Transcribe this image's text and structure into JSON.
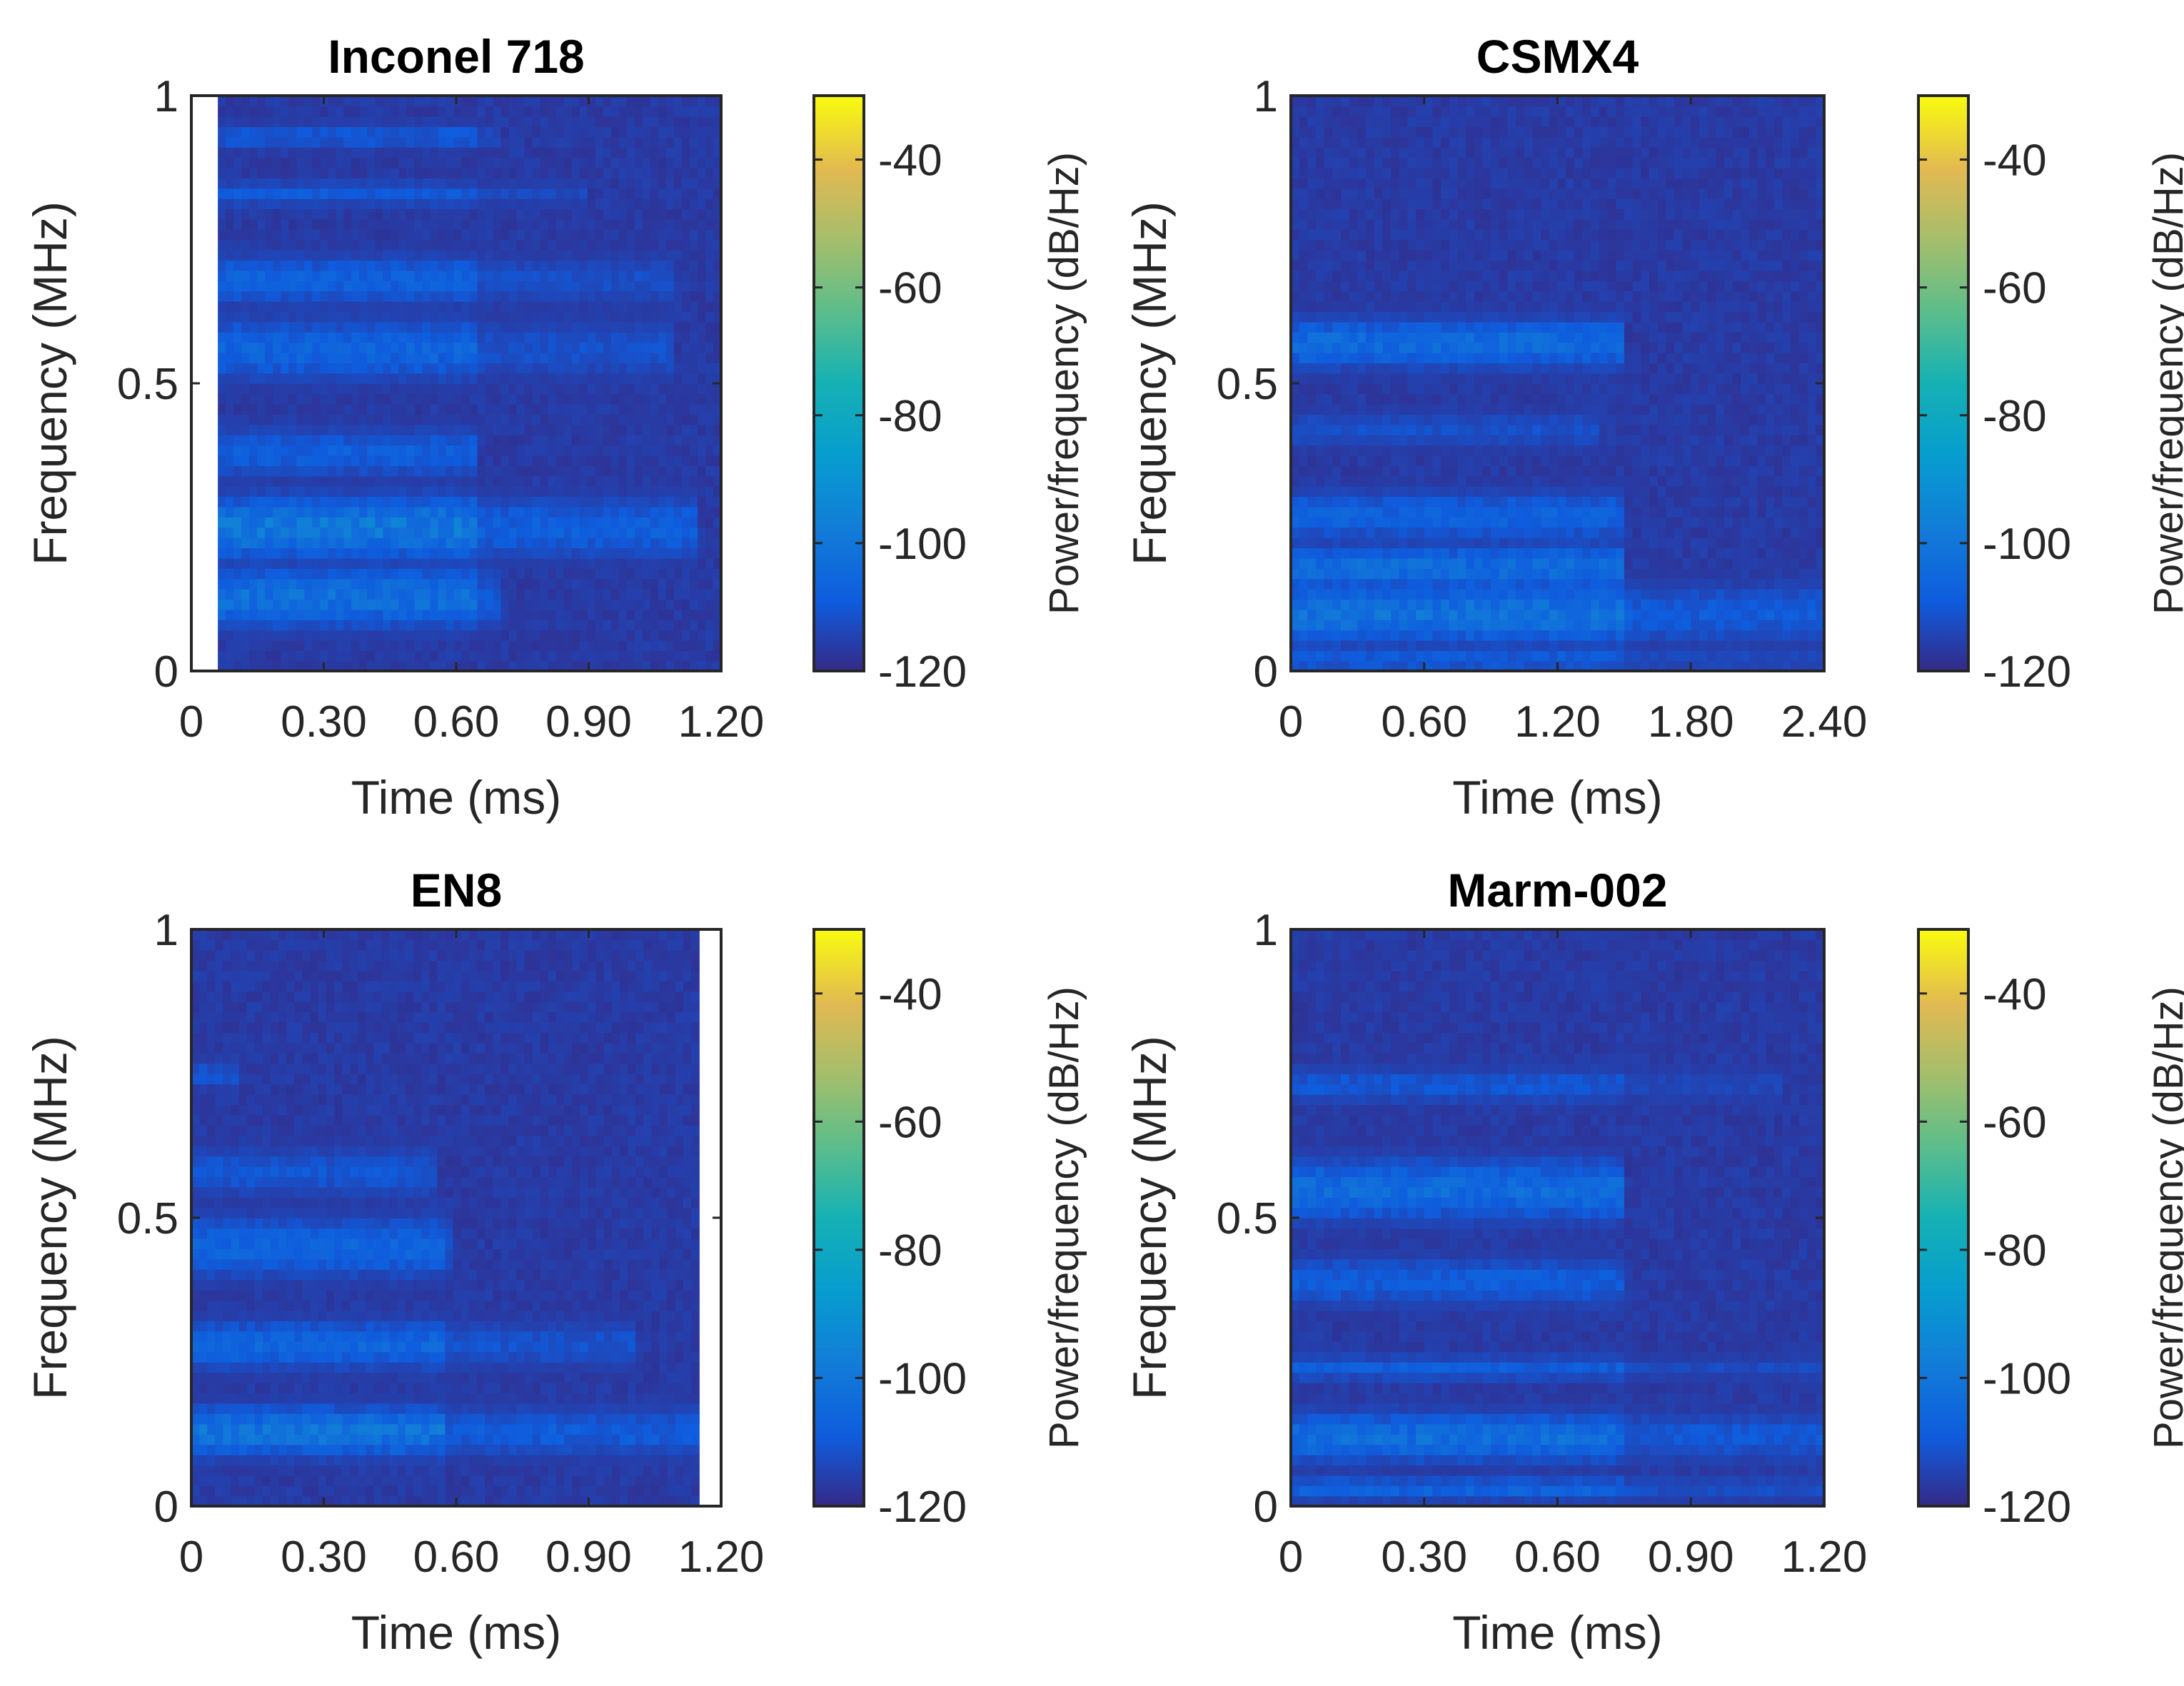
{
  "chart_data": [
    {
      "type": "heatmap",
      "title": "Inconel 718",
      "xlabel": "Time (ms)",
      "ylabel": "Frequency (MHz)",
      "xlim": [
        0,
        1.2
      ],
      "ylim": [
        0,
        1
      ],
      "xticks": [
        "0",
        "0.30",
        "0.60",
        "0.90",
        "1.20"
      ],
      "yticks": [
        "0",
        "0.5",
        "1"
      ],
      "colorbar": {
        "label": "Power/frequency (dB/Hz)",
        "range": [
          -120,
          -30
        ],
        "ticks": [
          "-40",
          "-60",
          "-80",
          "-100",
          "-120"
        ]
      },
      "data_extent_time": [
        0.06,
        1.2
      ],
      "signal_duration_ms": 0.65,
      "baseline_db": -118,
      "bands": [
        {
          "freq": 0.13,
          "width": 0.05,
          "peak_db": -98,
          "t_end": 0.7
        },
        {
          "freq": 0.25,
          "width": 0.05,
          "peak_db": -94,
          "t_end": 1.15
        },
        {
          "freq": 0.38,
          "width": 0.04,
          "peak_db": -105,
          "t_end": 0.65
        },
        {
          "freq": 0.56,
          "width": 0.05,
          "peak_db": -103,
          "t_end": 1.1
        },
        {
          "freq": 0.68,
          "width": 0.04,
          "peak_db": -104,
          "t_end": 1.1
        },
        {
          "freq": 0.83,
          "width": 0.02,
          "peak_db": -107,
          "t_end": 0.9
        },
        {
          "freq": 0.93,
          "width": 0.02,
          "peak_db": -107,
          "t_end": 0.7
        }
      ]
    },
    {
      "type": "heatmap",
      "title": "CSMX4",
      "xlabel": "Time (ms)",
      "ylabel": "Frequency (MHz)",
      "xlim": [
        0,
        2.4
      ],
      "ylim": [
        0,
        1
      ],
      "xticks": [
        "0",
        "0.60",
        "1.20",
        "1.80",
        "2.40"
      ],
      "yticks": [
        "0",
        "0.5",
        "1"
      ],
      "colorbar": {
        "label": "Power/frequency (dB/Hz)",
        "range": [
          -120,
          -30
        ],
        "ticks": [
          "-40",
          "-60",
          "-80",
          "-100",
          "-120"
        ]
      },
      "data_extent_time": [
        0,
        2.4
      ],
      "signal_duration_ms": 1.5,
      "baseline_db": -118,
      "bands": [
        {
          "freq": 0.02,
          "width": 0.02,
          "peak_db": -106,
          "t_end": 2.4
        },
        {
          "freq": 0.1,
          "width": 0.05,
          "peak_db": -97,
          "t_end": 2.4
        },
        {
          "freq": 0.18,
          "width": 0.04,
          "peak_db": -100,
          "t_end": 1.5
        },
        {
          "freq": 0.27,
          "width": 0.04,
          "peak_db": -104,
          "t_end": 1.5
        },
        {
          "freq": 0.42,
          "width": 0.03,
          "peak_db": -110,
          "t_end": 1.4
        },
        {
          "freq": 0.57,
          "width": 0.04,
          "peak_db": -100,
          "t_end": 1.5
        }
      ]
    },
    {
      "type": "heatmap",
      "title": "EN8",
      "xlabel": "Time (ms)",
      "ylabel": "Frequency (MHz)",
      "xlim": [
        0,
        1.2
      ],
      "ylim": [
        0,
        1
      ],
      "xticks": [
        "0",
        "0.30",
        "0.60",
        "0.90",
        "1.20"
      ],
      "yticks": [
        "0",
        "0.5",
        "1"
      ],
      "colorbar": {
        "label": "Power/frequency (dB/Hz)",
        "range": [
          -120,
          -30
        ],
        "ticks": [
          "-40",
          "-60",
          "-80",
          "-100",
          "-120"
        ]
      },
      "data_extent_time": [
        0,
        1.15
      ],
      "signal_duration_ms": 0.58,
      "baseline_db": -118,
      "bands": [
        {
          "freq": 0.13,
          "width": 0.04,
          "peak_db": -96,
          "t_end": 1.15
        },
        {
          "freq": 0.28,
          "width": 0.04,
          "peak_db": -102,
          "t_end": 1.0
        },
        {
          "freq": 0.45,
          "width": 0.05,
          "peak_db": -103,
          "t_end": 0.6
        },
        {
          "freq": 0.58,
          "width": 0.04,
          "peak_db": -108,
          "t_end": 0.55
        },
        {
          "freq": 0.75,
          "width": 0.02,
          "peak_db": -108,
          "t_end": 0.1
        }
      ]
    },
    {
      "type": "heatmap",
      "title": "Marm-002",
      "xlabel": "Time (ms)",
      "ylabel": "Frequency (MHz)",
      "xlim": [
        0,
        1.2
      ],
      "ylim": [
        0,
        1
      ],
      "xticks": [
        "0",
        "0.30",
        "0.60",
        "0.90",
        "1.20"
      ],
      "yticks": [
        "0",
        "0.5",
        "1"
      ],
      "colorbar": {
        "label": "Power/frequency (dB/Hz)",
        "range": [
          -120,
          -30
        ],
        "ticks": [
          "-40",
          "-60",
          "-80",
          "-100",
          "-120"
        ]
      },
      "data_extent_time": [
        0,
        1.2
      ],
      "signal_duration_ms": 0.75,
      "baseline_db": -118,
      "bands": [
        {
          "freq": 0.03,
          "width": 0.02,
          "peak_db": -104,
          "t_end": 1.2
        },
        {
          "freq": 0.12,
          "width": 0.04,
          "peak_db": -99,
          "t_end": 1.2
        },
        {
          "freq": 0.24,
          "width": 0.02,
          "peak_db": -106,
          "t_end": 1.2
        },
        {
          "freq": 0.39,
          "width": 0.04,
          "peak_db": -106,
          "t_end": 0.75
        },
        {
          "freq": 0.55,
          "width": 0.05,
          "peak_db": -100,
          "t_end": 0.75
        },
        {
          "freq": 0.73,
          "width": 0.03,
          "peak_db": -108,
          "t_end": 1.1
        }
      ]
    }
  ]
}
